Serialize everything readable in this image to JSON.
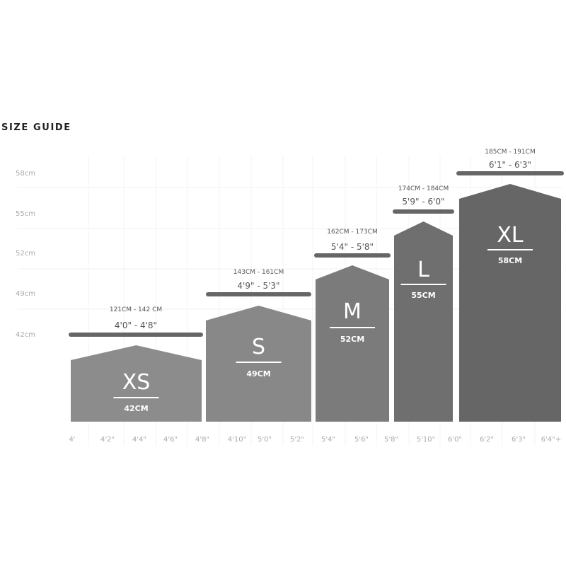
{
  "title": "SIZE GUIDE",
  "chart_data": {
    "type": "bar",
    "title": "SIZE GUIDE",
    "y_tick_labels": [
      "58cm",
      "55cm",
      "52cm",
      "49cm",
      "42cm"
    ],
    "x_tick_labels": [
      "4'",
      "4'2\"",
      "4'4\"",
      "4'6\"",
      "4'8\"",
      "4'10\"",
      "5'0\"",
      "5'2\"",
      "5'4\"",
      "5'6\"",
      "5'8\"",
      "5'10\"",
      "6'0\"",
      "6'2\"",
      "6'3\"",
      "6'4\"+"
    ],
    "grid": true,
    "categories": [
      "XS",
      "S",
      "M",
      "L",
      "XL"
    ],
    "values": [
      42,
      49,
      52,
      55,
      58
    ],
    "value_labels": [
      "42CM",
      "49CM",
      "52CM",
      "55CM",
      "58CM"
    ],
    "height_ranges_cm": [
      "121CM - 142 CM",
      "143CM - 161CM",
      "162CM - 173CM",
      "174CM - 184CM",
      "185CM - 191CM"
    ],
    "height_ranges_in": [
      "4'0\" - 4'8\"",
      "4'9\" - 5'3\"",
      "5'4\" - 5'8\"",
      "5'9\" - 6'0\"",
      "6'1\" - 6'3\""
    ],
    "colors": [
      "#8c8c8c",
      "#888888",
      "#7b7b7b",
      "#6f6f6f",
      "#666666"
    ],
    "range_bar_color": "#666666"
  }
}
